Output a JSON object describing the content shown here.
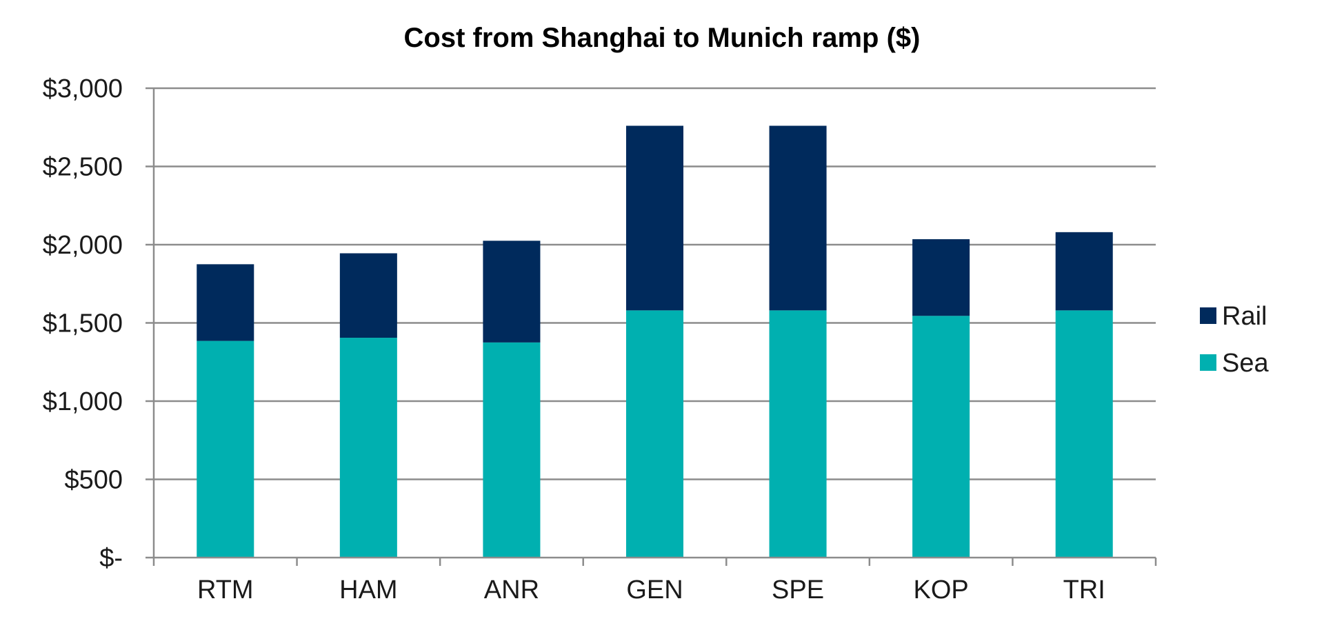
{
  "chart_data": {
    "type": "bar",
    "stacked": true,
    "title": "Cost from Shanghai to Munich ramp ($)",
    "xlabel": "",
    "ylabel": "",
    "categories": [
      "RTM",
      "HAM",
      "ANR",
      "GEN",
      "SPE",
      "KOP",
      "TRI"
    ],
    "series": [
      {
        "name": "Sea",
        "color": "#00B0B0",
        "values": [
          1385,
          1405,
          1375,
          1580,
          1580,
          1545,
          1580
        ]
      },
      {
        "name": "Rail",
        "color": "#002A5C",
        "values": [
          490,
          540,
          650,
          1180,
          1180,
          490,
          500
        ]
      }
    ],
    "ylim": [
      0,
      3000
    ],
    "yticks": [
      0,
      500,
      1000,
      1500,
      2000,
      2500,
      3000
    ],
    "ytick_labels": [
      "$-",
      "$500",
      "$1,000",
      "$1,500",
      "$2,000",
      "$2,500",
      "$3,000"
    ],
    "grid": true,
    "legend": {
      "position": "right",
      "entries": [
        "Rail",
        "Sea"
      ]
    }
  }
}
